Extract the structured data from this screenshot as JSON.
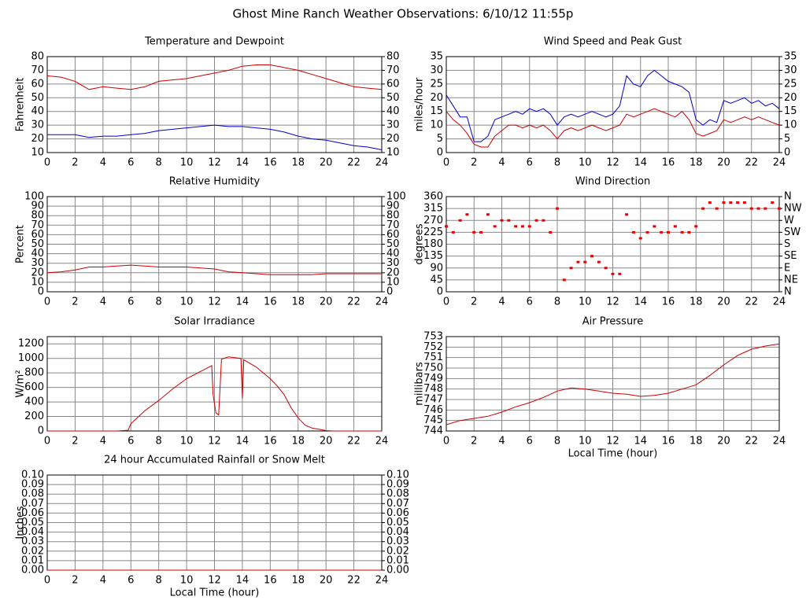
{
  "title": "Ghost Mine Ranch Weather Observations: 6/10/12 11:55p",
  "chart_data": [
    {
      "type": "line",
      "title": "Temperature and Dewpoint",
      "ylabel": "Fahrenheit",
      "x": [
        0,
        1,
        2,
        3,
        4,
        5,
        6,
        7,
        8,
        9,
        10,
        11,
        12,
        13,
        14,
        15,
        16,
        17,
        18,
        19,
        20,
        21,
        22,
        23,
        24
      ],
      "series": [
        {
          "color": "#cc0000",
          "values": [
            66,
            65,
            62,
            56,
            58,
            57,
            56,
            58,
            62,
            63,
            64,
            66,
            68,
            70,
            73,
            74,
            74,
            72,
            70,
            67,
            64,
            61,
            58,
            57,
            56
          ]
        },
        {
          "color": "#0000cc",
          "values": [
            23,
            23,
            23,
            21,
            22,
            22,
            23,
            24,
            26,
            27,
            28,
            29,
            30,
            29,
            29,
            28,
            27,
            25,
            22,
            20,
            19,
            17,
            15,
            14,
            12
          ]
        }
      ],
      "xlim": [
        0,
        24
      ],
      "xticks": [
        0,
        2,
        4,
        6,
        8,
        10,
        12,
        14,
        16,
        18,
        20,
        22,
        24
      ],
      "ylim": [
        10,
        80
      ],
      "yticks": [
        10,
        20,
        30,
        40,
        50,
        60,
        70,
        80
      ],
      "y2lim": [
        10,
        80
      ],
      "y2ticks": [
        10,
        20,
        30,
        40,
        50,
        60,
        70,
        80
      ],
      "grid": true
    },
    {
      "type": "line",
      "title": "Wind Speed and Peak Gust",
      "ylabel": "miles/hour",
      "x": [
        0,
        0.5,
        1,
        1.5,
        2,
        2.5,
        3,
        3.5,
        4,
        4.5,
        5,
        5.5,
        6,
        6.5,
        7,
        7.5,
        8,
        8.5,
        9,
        9.5,
        10,
        10.5,
        11,
        11.5,
        12,
        12.5,
        13,
        13.5,
        14,
        14.5,
        15,
        15.5,
        16,
        16.5,
        17,
        17.5,
        18,
        18.5,
        19,
        19.5,
        20,
        20.5,
        21,
        21.5,
        22,
        22.5,
        23,
        23.5,
        24
      ],
      "series": [
        {
          "color": "#0000cc",
          "values": [
            21,
            17,
            13,
            13,
            4,
            4,
            6,
            12,
            13,
            14,
            15,
            14,
            16,
            15,
            16,
            14,
            10,
            13,
            14,
            13,
            14,
            15,
            14,
            13,
            14,
            17,
            28,
            25,
            24,
            28,
            30,
            28,
            26,
            25,
            24,
            22,
            12,
            10,
            12,
            11,
            19,
            18,
            19,
            20,
            18,
            19,
            17,
            18,
            16
          ]
        },
        {
          "color": "#cc0000",
          "values": [
            15,
            12,
            10,
            7,
            3,
            2,
            2,
            6,
            8,
            10,
            10,
            9,
            10,
            9,
            10,
            8,
            5,
            8,
            9,
            8,
            9,
            10,
            9,
            8,
            9,
            10,
            14,
            13,
            14,
            15,
            16,
            15,
            14,
            13,
            15,
            12,
            7,
            6,
            7,
            8,
            12,
            11,
            12,
            13,
            12,
            13,
            12,
            11,
            10
          ]
        }
      ],
      "xlim": [
        0,
        24
      ],
      "xticks": [
        0,
        2,
        4,
        6,
        8,
        10,
        12,
        14,
        16,
        18,
        20,
        22,
        24
      ],
      "ylim": [
        0,
        35
      ],
      "yticks": [
        0,
        5,
        10,
        15,
        20,
        25,
        30,
        35
      ],
      "y2lim": [
        0,
        35
      ],
      "y2ticks": [
        0,
        5,
        10,
        15,
        20,
        25,
        30,
        35
      ],
      "grid": true
    },
    {
      "type": "line",
      "title": "Relative Humidity",
      "ylabel": "Percent",
      "x": [
        0,
        1,
        2,
        3,
        4,
        5,
        6,
        7,
        8,
        9,
        10,
        11,
        12,
        13,
        14,
        15,
        16,
        17,
        18,
        19,
        20,
        21,
        22,
        23,
        24
      ],
      "series": [
        {
          "color": "#cc0000",
          "values": [
            20,
            21,
            23,
            26,
            26,
            27,
            28,
            27,
            26,
            26,
            26,
            25,
            24,
            21,
            20,
            19,
            18,
            18,
            18,
            18,
            19,
            19,
            19,
            19,
            19
          ]
        }
      ],
      "xlim": [
        0,
        24
      ],
      "xticks": [
        0,
        2,
        4,
        6,
        8,
        10,
        12,
        14,
        16,
        18,
        20,
        22,
        24
      ],
      "ylim": [
        0,
        100
      ],
      "yticks": [
        0,
        10,
        20,
        30,
        40,
        50,
        60,
        70,
        80,
        90,
        100
      ],
      "y2lim": [
        0,
        100
      ],
      "y2ticks": [
        0,
        10,
        20,
        30,
        40,
        50,
        60,
        70,
        80,
        90,
        100
      ],
      "grid": true
    },
    {
      "type": "scatter",
      "title": "Wind Direction",
      "ylabel": "degrees",
      "color": "#ee0000",
      "x": [
        0,
        0.5,
        1,
        1.5,
        2,
        2.5,
        3,
        3.5,
        4,
        4.5,
        5,
        5.5,
        6,
        6.5,
        7,
        7.5,
        8,
        8.5,
        9,
        9.5,
        10,
        10.5,
        11,
        11.5,
        12,
        12.5,
        13,
        13.5,
        14,
        14.5,
        15,
        15.5,
        16,
        16.5,
        17,
        17.5,
        18,
        18.5,
        19,
        19.5,
        20,
        20.5,
        21,
        21.5,
        22,
        22.5,
        23,
        23.5,
        24
      ],
      "values": [
        247.5,
        225,
        270,
        292.5,
        225,
        225,
        292.5,
        247.5,
        270,
        270,
        247.5,
        247.5,
        247.5,
        270,
        270,
        225,
        315,
        45,
        90,
        112.5,
        112.5,
        135,
        112.5,
        90,
        67.5,
        67.5,
        292.5,
        225,
        202.5,
        225,
        247.5,
        225,
        225,
        247.5,
        225,
        225,
        247.5,
        315,
        337.5,
        315,
        337.5,
        337.5,
        337.5,
        337.5,
        315,
        315,
        315,
        337.5,
        315
      ],
      "xlim": [
        0,
        24
      ],
      "xticks": [
        0,
        2,
        4,
        6,
        8,
        10,
        12,
        14,
        16,
        18,
        20,
        22,
        24
      ],
      "ylim": [
        0,
        360
      ],
      "yticks": [
        0,
        45,
        90,
        135,
        180,
        225,
        270,
        315,
        360
      ],
      "y2lim": [
        0,
        360
      ],
      "y2ticks": [
        {
          "value": 0,
          "label": "N"
        },
        {
          "value": 45,
          "label": "NE"
        },
        {
          "value": 90,
          "label": "E"
        },
        {
          "value": 135,
          "label": "SE"
        },
        {
          "value": 180,
          "label": "S"
        },
        {
          "value": 225,
          "label": "SW"
        },
        {
          "value": 270,
          "label": "W"
        },
        {
          "value": 315,
          "label": "NW"
        },
        {
          "value": 360,
          "label": "N"
        }
      ],
      "grid": true
    },
    {
      "type": "line",
      "title": "Solar Irradiance",
      "ylabel": "W/m²",
      "x": [
        0,
        1,
        2,
        3,
        4,
        5,
        5.8,
        6,
        7,
        8,
        9,
        10,
        11,
        11.8,
        11.9,
        12.1,
        12.3,
        12.5,
        13,
        13.9,
        14,
        14.1,
        15,
        16,
        16.5,
        17,
        17.5,
        18,
        18.5,
        19,
        20,
        20.5,
        21,
        22,
        23,
        24
      ],
      "series": [
        {
          "color": "#cc0000",
          "values": [
            0,
            0,
            0,
            0,
            0,
            0,
            10,
            100,
            280,
            420,
            580,
            720,
            820,
            900,
            500,
            250,
            220,
            990,
            1020,
            1000,
            450,
            980,
            880,
            720,
            620,
            500,
            320,
            180,
            80,
            40,
            5,
            0,
            0,
            0,
            0,
            0
          ]
        }
      ],
      "xlim": [
        0,
        24
      ],
      "xticks": [
        0,
        2,
        4,
        6,
        8,
        10,
        12,
        14,
        16,
        18,
        20,
        22,
        24
      ],
      "ylim": [
        0,
        1300
      ],
      "yticks": [
        0,
        200,
        400,
        600,
        800,
        1000,
        1200
      ],
      "grid": true
    },
    {
      "type": "line",
      "title": "Air Pressure",
      "ylabel": "millibars",
      "xlabel": "Local Time (hour)",
      "x": [
        0,
        1,
        2,
        3,
        4,
        5,
        6,
        7,
        8,
        9,
        10,
        11,
        12,
        13,
        14,
        15,
        16,
        17,
        18,
        19,
        20,
        21,
        22,
        23,
        24
      ],
      "series": [
        {
          "color": "#cc0000",
          "values": [
            744.6,
            745.0,
            745.2,
            745.4,
            745.8,
            746.3,
            746.7,
            747.2,
            747.8,
            748.1,
            748.0,
            747.8,
            747.6,
            747.5,
            747.3,
            747.4,
            747.6,
            748.0,
            748.4,
            749.3,
            750.3,
            751.2,
            751.8,
            752.1,
            752.3
          ]
        }
      ],
      "xlim": [
        0,
        24
      ],
      "xticks": [
        0,
        2,
        4,
        6,
        8,
        10,
        12,
        14,
        16,
        18,
        20,
        22,
        24
      ],
      "ylim": [
        744,
        753
      ],
      "yticks": [
        744,
        745,
        746,
        747,
        748,
        749,
        750,
        751,
        752,
        753
      ],
      "grid": true
    },
    {
      "type": "line",
      "title": "24 hour Accumulated Rainfall or Snow Melt",
      "ylabel": "Inches",
      "xlabel": "Local Time (hour)",
      "x": [
        0,
        24
      ],
      "series": [
        {
          "color": "#cc0000",
          "values": [
            0,
            0
          ]
        }
      ],
      "xlim": [
        0,
        24
      ],
      "xticks": [
        0,
        2,
        4,
        6,
        8,
        10,
        12,
        14,
        16,
        18,
        20,
        22,
        24
      ],
      "ylim": [
        0,
        0.1
      ],
      "yticks": [
        {
          "value": 0,
          "label": "0.00"
        },
        0.01,
        0.02,
        0.03,
        0.04,
        0.05,
        0.06,
        0.07,
        0.08,
        0.09,
        {
          "value": 0.1,
          "label": "0.10"
        }
      ],
      "y2lim": [
        0,
        0.1
      ],
      "y2ticks": [
        {
          "value": 0,
          "label": "0.00"
        },
        0.01,
        0.02,
        0.03,
        0.04,
        0.05,
        0.06,
        0.07,
        0.08,
        0.09,
        {
          "value": 0.1,
          "label": "0.10"
        }
      ],
      "grid": true
    }
  ]
}
